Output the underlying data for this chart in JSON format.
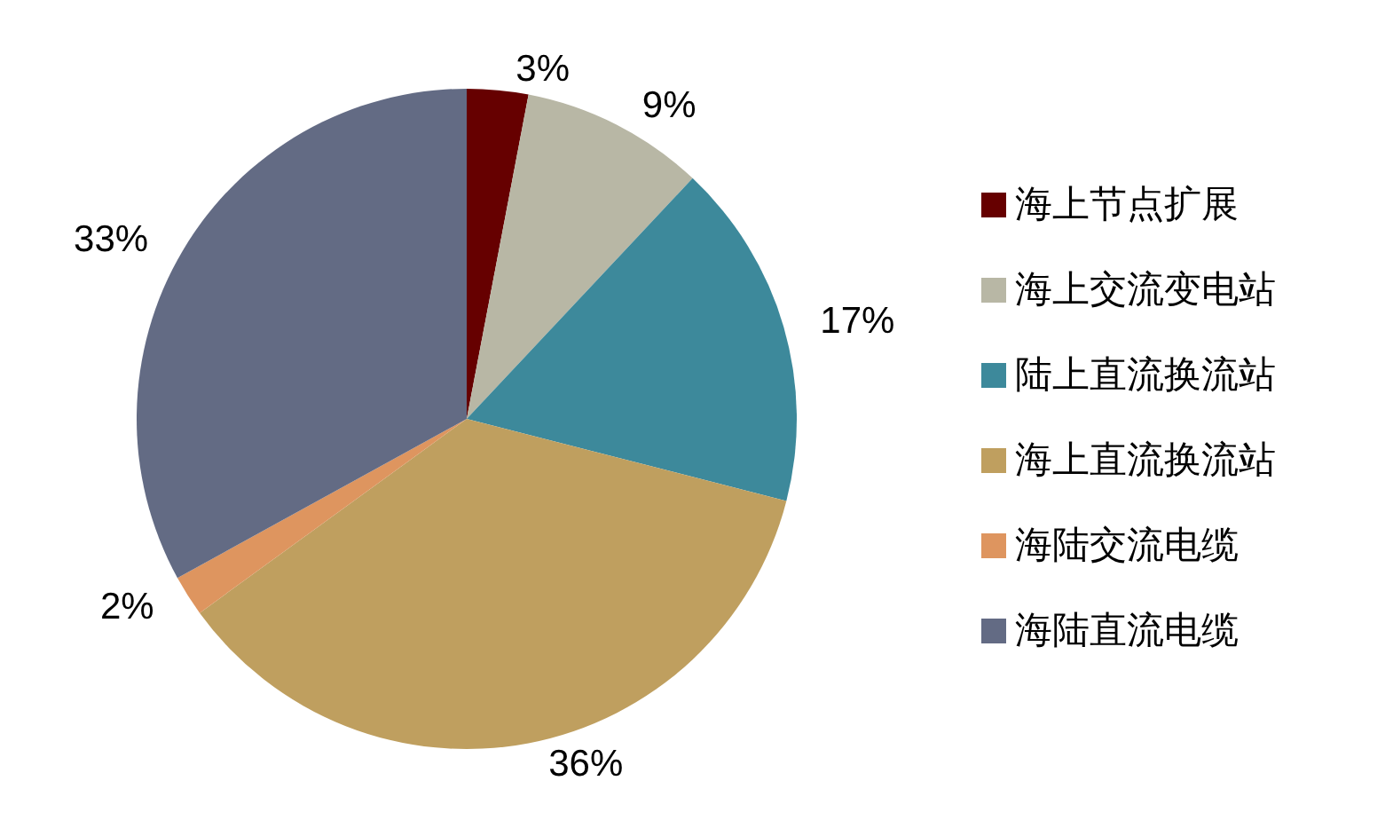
{
  "chart_data": {
    "type": "pie",
    "categories": [
      "海上节点扩展",
      "海上交流变电站",
      "陆上直流换流站",
      "海上直流换流站",
      "海陆交流电缆",
      "海陆直流电缆"
    ],
    "values": [
      3,
      9,
      17,
      36,
      2,
      33
    ],
    "colors": [
      "#660000",
      "#b8b7a5",
      "#3d899b",
      "#bf9f5f",
      "#de955f",
      "#636b84"
    ],
    "value_labels": [
      "3%",
      "9%",
      "17%",
      "36%",
      "2%",
      "33%"
    ],
    "legend": "right"
  }
}
